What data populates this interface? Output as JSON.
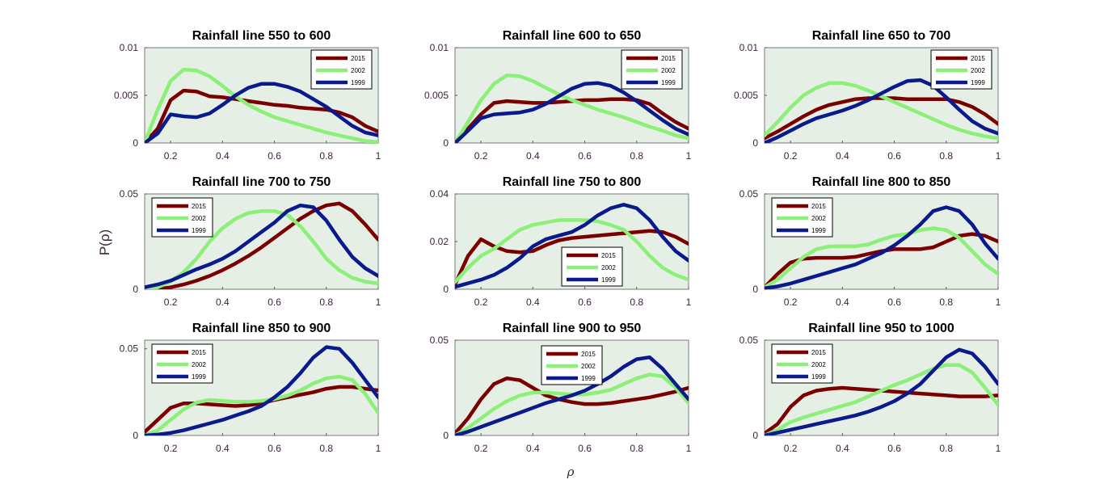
{
  "figure": {
    "xlabel": "ρ",
    "ylabel": "P(ρ)"
  },
  "colors": {
    "2015": "#7a0000",
    "2002": "#8cf078",
    "1999": "#0a1a8c",
    "axes_bg": "#e5efe5"
  },
  "chart_data": [
    {
      "type": "line",
      "title": "Rainfall line 550 to 600",
      "xlim": [
        0.1,
        1
      ],
      "ylim": [
        0,
        0.01
      ],
      "xticks": [
        "0.2",
        "0.4",
        "0.6",
        "0.8",
        "1"
      ],
      "yticks": [
        "0",
        "0.005",
        "0.01"
      ],
      "legend": "top-right",
      "x": [
        0.1,
        0.15,
        0.2,
        0.25,
        0.3,
        0.35,
        0.4,
        0.45,
        0.5,
        0.55,
        0.6,
        0.65,
        0.7,
        0.75,
        0.8,
        0.85,
        0.9,
        0.95,
        1.0
      ],
      "series": [
        {
          "name": "2015",
          "values": [
            0,
            0.0015,
            0.0045,
            0.0055,
            0.0054,
            0.0049,
            0.0048,
            0.0046,
            0.0044,
            0.0042,
            0.004,
            0.0039,
            0.0037,
            0.0036,
            0.0035,
            0.0032,
            0.0027,
            0.0018,
            0.0012
          ]
        },
        {
          "name": "2002",
          "values": [
            0,
            0.0035,
            0.0065,
            0.0077,
            0.0076,
            0.007,
            0.006,
            0.0049,
            0.004,
            0.0033,
            0.0027,
            0.0023,
            0.0019,
            0.0015,
            0.0011,
            0.0008,
            0.0005,
            0.0002,
            0.0001
          ]
        },
        {
          "name": "1999",
          "values": [
            0,
            0.001,
            0.003,
            0.0028,
            0.0027,
            0.0031,
            0.004,
            0.005,
            0.0058,
            0.0062,
            0.0062,
            0.0059,
            0.0054,
            0.0046,
            0.0038,
            0.0028,
            0.0018,
            0.0011,
            0.0008
          ]
        }
      ]
    },
    {
      "type": "line",
      "title": "Rainfall line 600 to 650",
      "xlim": [
        0.1,
        1
      ],
      "ylim": [
        0,
        0.01
      ],
      "xticks": [
        "0.2",
        "0.4",
        "0.6",
        "0.8",
        "1"
      ],
      "yticks": [
        "0",
        "0.005",
        "0.01"
      ],
      "legend": "top-right",
      "x": [
        0.1,
        0.15,
        0.2,
        0.25,
        0.3,
        0.35,
        0.4,
        0.45,
        0.5,
        0.55,
        0.6,
        0.65,
        0.7,
        0.75,
        0.8,
        0.85,
        0.9,
        0.95,
        1.0
      ],
      "series": [
        {
          "name": "2015",
          "values": [
            0,
            0.0015,
            0.003,
            0.0042,
            0.0044,
            0.0043,
            0.0042,
            0.0042,
            0.0043,
            0.0044,
            0.0045,
            0.0045,
            0.0046,
            0.0046,
            0.0045,
            0.0041,
            0.0031,
            0.0022,
            0.0015
          ]
        },
        {
          "name": "2002",
          "values": [
            0,
            0.0022,
            0.0045,
            0.0062,
            0.0071,
            0.007,
            0.0065,
            0.0058,
            0.0051,
            0.0045,
            0.004,
            0.0035,
            0.0031,
            0.0027,
            0.0022,
            0.0017,
            0.0013,
            0.0008,
            0.0005
          ]
        },
        {
          "name": "1999",
          "values": [
            0,
            0.0013,
            0.0026,
            0.003,
            0.0031,
            0.0032,
            0.0035,
            0.0041,
            0.0049,
            0.0057,
            0.0062,
            0.0063,
            0.006,
            0.0053,
            0.0044,
            0.0034,
            0.0024,
            0.0015,
            0.0009
          ]
        }
      ]
    },
    {
      "type": "line",
      "title": "Rainfall line 650 to 700",
      "xlim": [
        0.1,
        1
      ],
      "ylim": [
        0,
        0.01
      ],
      "xticks": [
        "0.2",
        "0.4",
        "0.6",
        "0.8",
        "1"
      ],
      "yticks": [
        "0",
        "0.005",
        "0.01"
      ],
      "legend": "top-right",
      "x": [
        0.1,
        0.15,
        0.2,
        0.25,
        0.3,
        0.35,
        0.4,
        0.45,
        0.5,
        0.55,
        0.6,
        0.65,
        0.7,
        0.75,
        0.8,
        0.85,
        0.9,
        0.95,
        1.0
      ],
      "series": [
        {
          "name": "2015",
          "values": [
            0.0005,
            0.0012,
            0.002,
            0.0028,
            0.0035,
            0.004,
            0.0043,
            0.0046,
            0.0047,
            0.0047,
            0.0047,
            0.0046,
            0.0046,
            0.0046,
            0.0046,
            0.0043,
            0.0038,
            0.003,
            0.002
          ]
        },
        {
          "name": "2002",
          "values": [
            0.0008,
            0.0022,
            0.0037,
            0.005,
            0.0058,
            0.0063,
            0.0063,
            0.006,
            0.0055,
            0.0049,
            0.0043,
            0.0037,
            0.0031,
            0.0025,
            0.0019,
            0.0014,
            0.001,
            0.0007,
            0.0005
          ]
        },
        {
          "name": "1999",
          "values": [
            0,
            0.0006,
            0.0013,
            0.002,
            0.0026,
            0.003,
            0.0034,
            0.0039,
            0.0045,
            0.0052,
            0.0059,
            0.0065,
            0.0066,
            0.006,
            0.0048,
            0.0035,
            0.0023,
            0.0015,
            0.001
          ]
        }
      ]
    },
    {
      "type": "line",
      "title": "Rainfall line 700 to 750",
      "xlim": [
        0.1,
        1
      ],
      "ylim": [
        0,
        0.05
      ],
      "xticks": [
        "0.2",
        "0.4",
        "0.6",
        "0.8",
        "1"
      ],
      "yticks": [
        "0",
        "0.05"
      ],
      "legend": "top-left",
      "x": [
        0.1,
        0.15,
        0.2,
        0.25,
        0.3,
        0.35,
        0.4,
        0.45,
        0.5,
        0.55,
        0.6,
        0.65,
        0.7,
        0.75,
        0.8,
        0.85,
        0.9,
        0.95,
        1.0
      ],
      "series": [
        {
          "name": "2015",
          "values": [
            0,
            0,
            0.001,
            0.0025,
            0.0045,
            0.007,
            0.01,
            0.0135,
            0.0175,
            0.022,
            0.027,
            0.032,
            0.037,
            0.041,
            0.044,
            0.045,
            0.041,
            0.034,
            0.026
          ]
        },
        {
          "name": "2002",
          "values": [
            0,
            0.001,
            0.004,
            0.009,
            0.016,
            0.025,
            0.032,
            0.037,
            0.04,
            0.041,
            0.041,
            0.039,
            0.033,
            0.025,
            0.016,
            0.01,
            0.006,
            0.004,
            0.003
          ]
        },
        {
          "name": "1999",
          "values": [
            0.001,
            0.0025,
            0.0045,
            0.0075,
            0.0105,
            0.013,
            0.016,
            0.02,
            0.025,
            0.03,
            0.035,
            0.041,
            0.044,
            0.043,
            0.036,
            0.026,
            0.017,
            0.011,
            0.007
          ]
        }
      ]
    },
    {
      "type": "line",
      "title": "Rainfall line 750 to 800",
      "xlim": [
        0.1,
        1
      ],
      "ylim": [
        0,
        0.04
      ],
      "xticks": [
        "0.2",
        "0.4",
        "0.6",
        "0.8",
        "1"
      ],
      "yticks": [
        "0",
        "0.02",
        "0.04"
      ],
      "legend": "bottom-center",
      "x": [
        0.1,
        0.15,
        0.2,
        0.25,
        0.3,
        0.35,
        0.4,
        0.45,
        0.5,
        0.55,
        0.6,
        0.65,
        0.7,
        0.75,
        0.8,
        0.85,
        0.9,
        0.95,
        1.0
      ],
      "series": [
        {
          "name": "2015",
          "values": [
            0.002,
            0.014,
            0.021,
            0.018,
            0.016,
            0.0155,
            0.016,
            0.0185,
            0.0205,
            0.0215,
            0.022,
            0.0225,
            0.023,
            0.0235,
            0.024,
            0.0245,
            0.024,
            0.022,
            0.019
          ]
        },
        {
          "name": "2002",
          "values": [
            0.003,
            0.009,
            0.014,
            0.017,
            0.021,
            0.025,
            0.027,
            0.028,
            0.029,
            0.029,
            0.029,
            0.0285,
            0.027,
            0.025,
            0.02,
            0.014,
            0.009,
            0.006,
            0.004
          ]
        },
        {
          "name": "1999",
          "values": [
            0.001,
            0.0025,
            0.004,
            0.006,
            0.009,
            0.013,
            0.018,
            0.021,
            0.0225,
            0.024,
            0.027,
            0.031,
            0.034,
            0.0355,
            0.034,
            0.029,
            0.022,
            0.016,
            0.012
          ]
        }
      ]
    },
    {
      "type": "line",
      "title": "Rainfall line 800 to 850",
      "xlim": [
        0.1,
        1
      ],
      "ylim": [
        0,
        0.05
      ],
      "xticks": [
        "0.2",
        "0.4",
        "0.6",
        "0.8",
        "1"
      ],
      "yticks": [
        "0",
        "0.05"
      ],
      "legend": "top-left",
      "x": [
        0.1,
        0.15,
        0.2,
        0.25,
        0.3,
        0.35,
        0.4,
        0.45,
        0.5,
        0.55,
        0.6,
        0.65,
        0.7,
        0.75,
        0.8,
        0.85,
        0.9,
        0.95,
        1.0
      ],
      "series": [
        {
          "name": "2015",
          "values": [
            0.001,
            0.008,
            0.014,
            0.016,
            0.0165,
            0.0165,
            0.0165,
            0.017,
            0.0185,
            0.02,
            0.021,
            0.021,
            0.021,
            0.022,
            0.025,
            0.028,
            0.029,
            0.028,
            0.025
          ]
        },
        {
          "name": "2002",
          "values": [
            0.001,
            0.005,
            0.011,
            0.017,
            0.021,
            0.0225,
            0.0225,
            0.0225,
            0.0235,
            0.026,
            0.028,
            0.029,
            0.031,
            0.032,
            0.031,
            0.027,
            0.02,
            0.013,
            0.008
          ]
        },
        {
          "name": "1999",
          "values": [
            0.0005,
            0.0015,
            0.003,
            0.005,
            0.007,
            0.009,
            0.011,
            0.013,
            0.016,
            0.019,
            0.023,
            0.028,
            0.034,
            0.041,
            0.043,
            0.041,
            0.034,
            0.024,
            0.016
          ]
        }
      ]
    },
    {
      "type": "line",
      "title": "Rainfall line 850 to 900",
      "xlim": [
        0.1,
        1
      ],
      "ylim": [
        0,
        0.055
      ],
      "xticks": [
        "0.2",
        "0.4",
        "0.6",
        "0.8",
        "1"
      ],
      "yticks": [
        "0",
        "0.05"
      ],
      "legend": "top-left",
      "x": [
        0.1,
        0.15,
        0.2,
        0.25,
        0.3,
        0.35,
        0.4,
        0.45,
        0.5,
        0.55,
        0.6,
        0.65,
        0.7,
        0.75,
        0.8,
        0.85,
        0.9,
        0.95,
        1.0
      ],
      "series": [
        {
          "name": "2015",
          "values": [
            0.002,
            0.009,
            0.016,
            0.0185,
            0.0185,
            0.018,
            0.0175,
            0.017,
            0.0175,
            0.0185,
            0.0205,
            0.022,
            0.0235,
            0.025,
            0.027,
            0.028,
            0.028,
            0.027,
            0.026
          ]
        },
        {
          "name": "2002",
          "values": [
            0,
            0.003,
            0.009,
            0.015,
            0.019,
            0.0205,
            0.02,
            0.0195,
            0.0195,
            0.02,
            0.021,
            0.023,
            0.026,
            0.03,
            0.033,
            0.034,
            0.032,
            0.024,
            0.013
          ]
        },
        {
          "name": "1999",
          "values": [
            0,
            0.0005,
            0.0015,
            0.003,
            0.005,
            0.007,
            0.009,
            0.0115,
            0.014,
            0.017,
            0.022,
            0.028,
            0.036,
            0.045,
            0.051,
            0.05,
            0.042,
            0.032,
            0.022
          ]
        }
      ]
    },
    {
      "type": "line",
      "title": "Rainfall line 900 to 950",
      "xlim": [
        0.1,
        1
      ],
      "ylim": [
        0,
        0.05
      ],
      "xticks": [
        "0.2",
        "0.4",
        "0.6",
        "0.8",
        "1"
      ],
      "yticks": [
        "0",
        "0.05"
      ],
      "legend": "top-center",
      "x": [
        0.1,
        0.15,
        0.2,
        0.25,
        0.3,
        0.35,
        0.4,
        0.45,
        0.5,
        0.55,
        0.6,
        0.65,
        0.7,
        0.75,
        0.8,
        0.85,
        0.9,
        0.95,
        1.0
      ],
      "series": [
        {
          "name": "2015",
          "values": [
            0.001,
            0.009,
            0.019,
            0.027,
            0.03,
            0.029,
            0.025,
            0.021,
            0.019,
            0.0175,
            0.0165,
            0.0165,
            0.017,
            0.018,
            0.019,
            0.02,
            0.0215,
            0.023,
            0.025
          ]
        },
        {
          "name": "2002",
          "values": [
            0,
            0.004,
            0.009,
            0.014,
            0.018,
            0.021,
            0.0225,
            0.0225,
            0.022,
            0.0215,
            0.0215,
            0.0225,
            0.024,
            0.027,
            0.03,
            0.032,
            0.031,
            0.025,
            0.017
          ]
        },
        {
          "name": "1999",
          "values": [
            0,
            0.002,
            0.0045,
            0.007,
            0.0095,
            0.012,
            0.0145,
            0.017,
            0.019,
            0.021,
            0.0235,
            0.027,
            0.031,
            0.036,
            0.04,
            0.041,
            0.035,
            0.027,
            0.019
          ]
        }
      ]
    },
    {
      "type": "line",
      "title": "Rainfall line 950 to 1000",
      "xlim": [
        0.1,
        1
      ],
      "ylim": [
        0,
        0.05
      ],
      "xticks": [
        "0.2",
        "0.4",
        "0.6",
        "0.8",
        "1"
      ],
      "yticks": [
        "0",
        "0.05"
      ],
      "legend": "top-left",
      "x": [
        0.1,
        0.15,
        0.2,
        0.25,
        0.3,
        0.35,
        0.4,
        0.45,
        0.5,
        0.55,
        0.6,
        0.65,
        0.7,
        0.75,
        0.8,
        0.85,
        0.9,
        0.95,
        1.0
      ],
      "series": [
        {
          "name": "2015",
          "values": [
            0.001,
            0.006,
            0.015,
            0.021,
            0.0235,
            0.0245,
            0.025,
            0.0245,
            0.024,
            0.0235,
            0.023,
            0.0225,
            0.022,
            0.0215,
            0.021,
            0.0205,
            0.0205,
            0.0205,
            0.021
          ]
        },
        {
          "name": "2002",
          "values": [
            0,
            0.003,
            0.007,
            0.0095,
            0.0115,
            0.0135,
            0.0155,
            0.0175,
            0.0205,
            0.0235,
            0.0265,
            0.029,
            0.032,
            0.035,
            0.037,
            0.037,
            0.033,
            0.025,
            0.016
          ]
        },
        {
          "name": "1999",
          "values": [
            0,
            0.0015,
            0.003,
            0.0045,
            0.006,
            0.0075,
            0.009,
            0.0105,
            0.0125,
            0.015,
            0.018,
            0.022,
            0.027,
            0.034,
            0.041,
            0.045,
            0.043,
            0.036,
            0.027
          ]
        }
      ]
    }
  ]
}
